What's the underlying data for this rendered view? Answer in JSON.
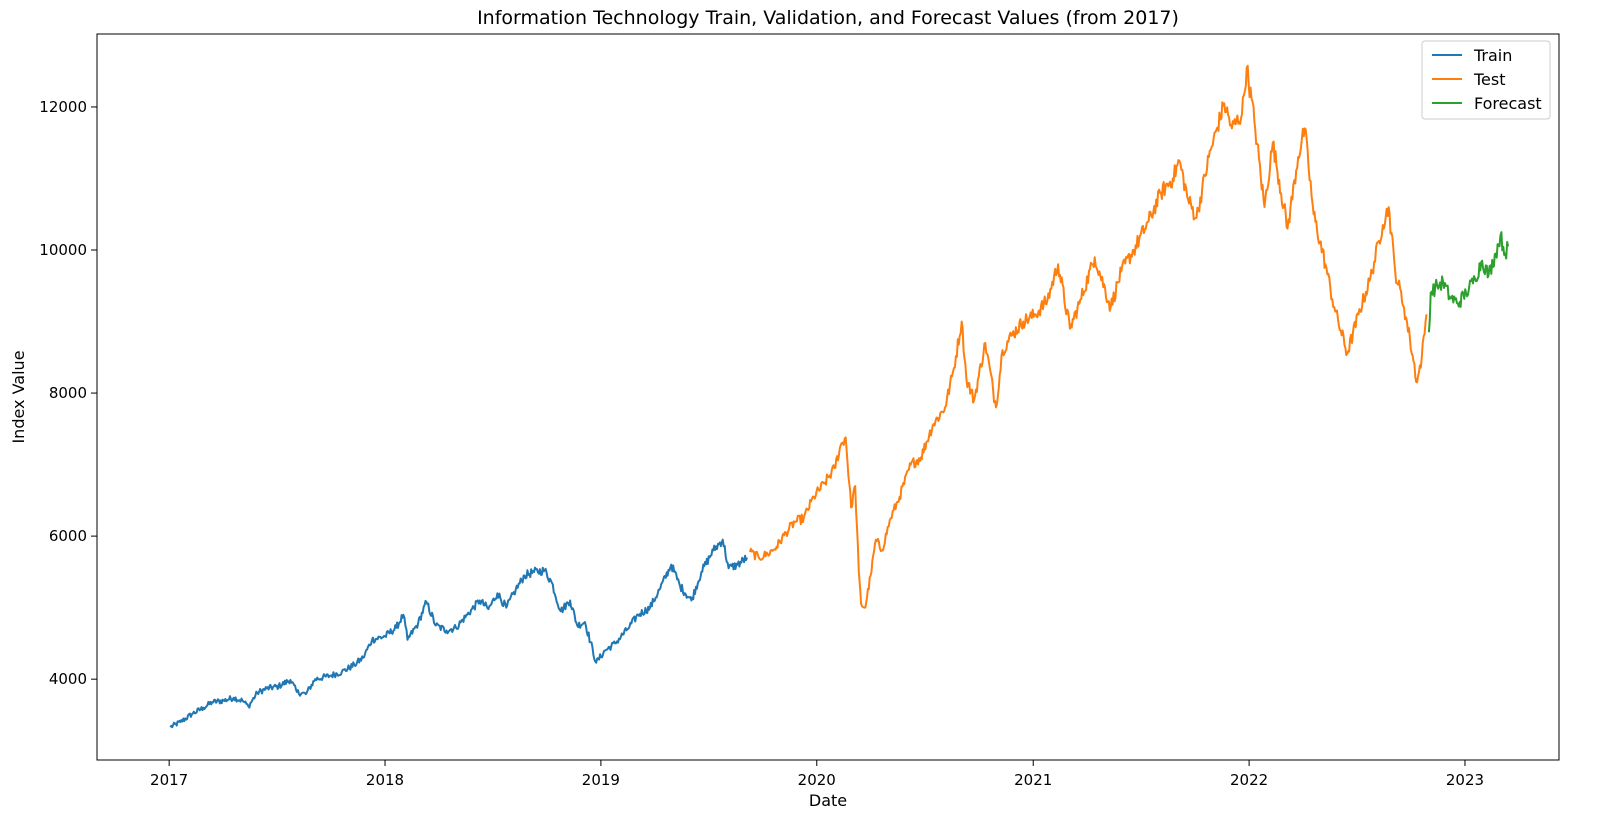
{
  "chart_data": {
    "type": "line",
    "title": "Information Technology Train, Validation, and Forecast Values (from 2017)",
    "xlabel": "Date",
    "ylabel": "Index Value",
    "xlim": [
      "2016-09-01",
      "2023-06-09"
    ],
    "ylim": [
      2870,
      13020
    ],
    "x_ticks": [
      "2017",
      "2018",
      "2019",
      "2020",
      "2021",
      "2022",
      "2023"
    ],
    "y_ticks": [
      4000,
      6000,
      8000,
      10000,
      12000
    ],
    "grid": false,
    "legend_position": "top-right",
    "series": [
      {
        "name": "Train",
        "color": "#1f77b4",
        "points": [
          [
            "2017-01-03",
            3330
          ],
          [
            "2017-01-20",
            3400
          ],
          [
            "2017-02-10",
            3520
          ],
          [
            "2017-02-28",
            3600
          ],
          [
            "2017-03-15",
            3680
          ],
          [
            "2017-04-03",
            3700
          ],
          [
            "2017-04-20",
            3740
          ],
          [
            "2017-05-05",
            3700
          ],
          [
            "2017-05-15",
            3620
          ],
          [
            "2017-05-30",
            3810
          ],
          [
            "2017-06-15",
            3870
          ],
          [
            "2017-07-05",
            3900
          ],
          [
            "2017-07-25",
            3990
          ],
          [
            "2017-08-05",
            3820
          ],
          [
            "2017-08-20",
            3790
          ],
          [
            "2017-09-05",
            4000
          ],
          [
            "2017-10-01",
            4050
          ],
          [
            "2017-10-20",
            4100
          ],
          [
            "2017-11-10",
            4200
          ],
          [
            "2017-11-25",
            4300
          ],
          [
            "2017-12-10",
            4550
          ],
          [
            "2018-01-01",
            4600
          ],
          [
            "2018-01-20",
            4720
          ],
          [
            "2018-02-01",
            4900
          ],
          [
            "2018-02-08",
            4550
          ],
          [
            "2018-02-26",
            4780
          ],
          [
            "2018-03-12",
            5080
          ],
          [
            "2018-03-28",
            4750
          ],
          [
            "2018-04-15",
            4680
          ],
          [
            "2018-05-01",
            4720
          ],
          [
            "2018-05-20",
            4900
          ],
          [
            "2018-06-10",
            5100
          ],
          [
            "2018-06-25",
            4980
          ],
          [
            "2018-07-10",
            5200
          ],
          [
            "2018-07-25",
            5000
          ],
          [
            "2018-08-10",
            5250
          ],
          [
            "2018-08-25",
            5450
          ],
          [
            "2018-09-10",
            5500
          ],
          [
            "2018-09-28",
            5520
          ],
          [
            "2018-10-10",
            5350
          ],
          [
            "2018-10-25",
            4950
          ],
          [
            "2018-11-10",
            5100
          ],
          [
            "2018-11-22",
            4750
          ],
          [
            "2018-12-05",
            4800
          ],
          [
            "2018-12-24",
            4230
          ],
          [
            "2019-01-08",
            4400
          ],
          [
            "2019-01-25",
            4500
          ],
          [
            "2019-02-15",
            4700
          ],
          [
            "2019-03-05",
            4900
          ],
          [
            "2019-03-25",
            5000
          ],
          [
            "2019-04-10",
            5250
          ],
          [
            "2019-04-30",
            5600
          ],
          [
            "2019-05-15",
            5300
          ],
          [
            "2019-06-03",
            5100
          ],
          [
            "2019-06-20",
            5500
          ],
          [
            "2019-07-10",
            5800
          ],
          [
            "2019-07-26",
            5950
          ],
          [
            "2019-08-05",
            5550
          ],
          [
            "2019-08-20",
            5600
          ],
          [
            "2019-09-05",
            5700
          ]
        ]
      },
      {
        "name": "Test",
        "color": "#ff7f0e",
        "points": [
          [
            "2019-09-10",
            5780
          ],
          [
            "2019-09-25",
            5700
          ],
          [
            "2019-10-10",
            5750
          ],
          [
            "2019-10-25",
            5850
          ],
          [
            "2019-11-10",
            6050
          ],
          [
            "2019-11-25",
            6200
          ],
          [
            "2019-12-10",
            6250
          ],
          [
            "2019-12-27",
            6550
          ],
          [
            "2020-01-15",
            6750
          ],
          [
            "2020-01-31",
            6950
          ],
          [
            "2020-02-12",
            7300
          ],
          [
            "2020-02-19",
            7380
          ],
          [
            "2020-02-28",
            6400
          ],
          [
            "2020-03-06",
            6700
          ],
          [
            "2020-03-12",
            5500
          ],
          [
            "2020-03-16",
            5050
          ],
          [
            "2020-03-23",
            5000
          ],
          [
            "2020-04-01",
            5450
          ],
          [
            "2020-04-10",
            5950
          ],
          [
            "2020-04-20",
            5800
          ],
          [
            "2020-05-05",
            6250
          ],
          [
            "2020-05-20",
            6550
          ],
          [
            "2020-06-08",
            7000
          ],
          [
            "2020-06-25",
            7100
          ],
          [
            "2020-07-15",
            7550
          ],
          [
            "2020-08-05",
            7800
          ],
          [
            "2020-08-20",
            8350
          ],
          [
            "2020-09-02",
            9000
          ],
          [
            "2020-09-10",
            8200
          ],
          [
            "2020-09-23",
            7900
          ],
          [
            "2020-10-12",
            8700
          ],
          [
            "2020-10-30",
            7800
          ],
          [
            "2020-11-10",
            8600
          ],
          [
            "2020-11-25",
            8800
          ],
          [
            "2020-12-15",
            9000
          ],
          [
            "2021-01-05",
            9100
          ],
          [
            "2021-01-25",
            9300
          ],
          [
            "2021-02-12",
            9800
          ],
          [
            "2021-03-04",
            8900
          ],
          [
            "2021-03-20",
            9250
          ],
          [
            "2021-04-15",
            9900
          ],
          [
            "2021-05-12",
            9200
          ],
          [
            "2021-05-30",
            9700
          ],
          [
            "2021-06-20",
            10000
          ],
          [
            "2021-07-15",
            10400
          ],
          [
            "2021-08-05",
            10800
          ],
          [
            "2021-08-25",
            11000
          ],
          [
            "2021-09-05",
            11250
          ],
          [
            "2021-09-20",
            10700
          ],
          [
            "2021-10-04",
            10450
          ],
          [
            "2021-10-25",
            11300
          ],
          [
            "2021-11-20",
            12050
          ],
          [
            "2021-12-03",
            11700
          ],
          [
            "2021-12-20",
            11900
          ],
          [
            "2021-12-28",
            12550
          ],
          [
            "2022-01-10",
            11800
          ],
          [
            "2022-01-27",
            10600
          ],
          [
            "2022-02-10",
            11500
          ],
          [
            "2022-03-07",
            10300
          ],
          [
            "2022-03-25",
            11300
          ],
          [
            "2022-04-05",
            11700
          ],
          [
            "2022-04-20",
            10500
          ],
          [
            "2022-05-10",
            9800
          ],
          [
            "2022-05-25",
            9200
          ],
          [
            "2022-06-16",
            8550
          ],
          [
            "2022-07-05",
            9100
          ],
          [
            "2022-07-25",
            9600
          ],
          [
            "2022-08-15",
            10350
          ],
          [
            "2022-08-25",
            10600
          ],
          [
            "2022-09-05",
            9700
          ],
          [
            "2022-09-20",
            9200
          ],
          [
            "2022-09-30",
            8750
          ],
          [
            "2022-10-12",
            8150
          ],
          [
            "2022-10-20",
            8500
          ],
          [
            "2022-10-28",
            9100
          ]
        ]
      },
      {
        "name": "Forecast",
        "color": "#2ca02c",
        "points": [
          [
            "2022-11-01",
            8850
          ],
          [
            "2022-11-04",
            9400
          ],
          [
            "2022-11-15",
            9500
          ],
          [
            "2022-11-25",
            9550
          ],
          [
            "2022-12-06",
            9350
          ],
          [
            "2022-12-20",
            9250
          ],
          [
            "2023-01-03",
            9400
          ],
          [
            "2023-01-18",
            9600
          ],
          [
            "2023-01-30",
            9850
          ],
          [
            "2023-02-10",
            9650
          ],
          [
            "2023-02-22",
            9950
          ],
          [
            "2023-03-02",
            10200
          ],
          [
            "2023-03-10",
            9950
          ],
          [
            "2023-03-15",
            10050
          ]
        ]
      }
    ]
  }
}
